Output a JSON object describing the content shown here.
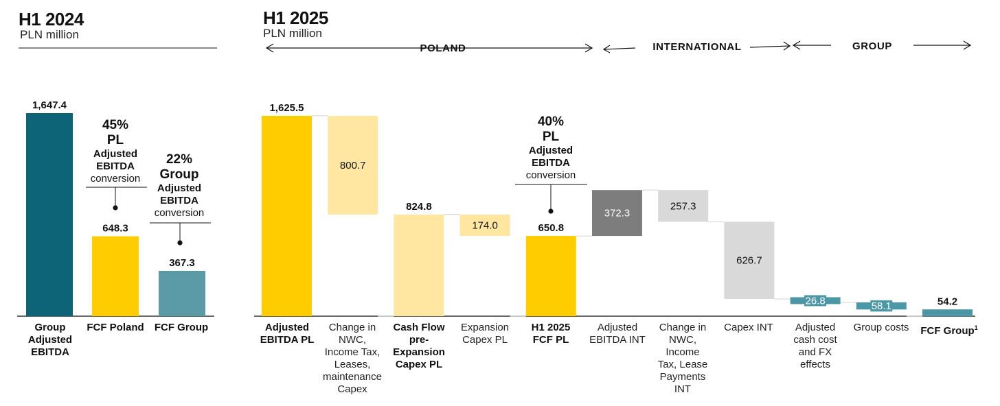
{
  "colors": {
    "teal_dark": "#0D6476",
    "teal_mid": "#5B9BA7",
    "teal_small": "#4C97A6",
    "yellow": "#FFCC00",
    "yellow_light": "#FFE7A2",
    "grey_dark": "#7D7D7D",
    "grey_light": "#D9D9D9"
  },
  "h1_2024": {
    "title": "H1 2024",
    "unit": "PLN million"
  },
  "h1_2025": {
    "title": "H1 2025",
    "unit": "PLN million"
  },
  "segments": {
    "poland": "POLAND",
    "international": "INTERNATIONAL",
    "group": "GROUP"
  },
  "annotations": {
    "pl_2024": {
      "pct": "45%",
      "line2": "PL",
      "line3": "Adjusted",
      "line4": "EBITDA",
      "line5": "conversion"
    },
    "group_2024": {
      "pct": "22%",
      "line2": "Group",
      "line3": "Adjusted",
      "line4": "EBITDA",
      "line5": "conversion"
    },
    "pl_2025": {
      "pct": "40%",
      "line2": "PL",
      "line3": "Adjusted",
      "line4": "EBITDA",
      "line5": "conversion"
    }
  },
  "categories_text": {
    "c2024_0": [
      "Group",
      "Adjusted",
      "EBITDA"
    ],
    "c2024_1": [
      "FCF Poland"
    ],
    "c2024_2": [
      "FCF Group"
    ],
    "c2025_0": [
      "Adjusted",
      "EBITDA PL"
    ],
    "c2025_1": [
      "Change in",
      "NWC,",
      "Income Tax,",
      "Leases,",
      "maintenance",
      "Capex"
    ],
    "c2025_2": [
      "Cash Flow",
      "pre-",
      "Expansion",
      "Capex PL"
    ],
    "c2025_3": [
      "Expansion",
      "Capex PL"
    ],
    "c2025_4": [
      "H1 2025",
      "FCF PL"
    ],
    "c2025_5": [
      "Adjusted",
      "EBITDA INT"
    ],
    "c2025_6": [
      "Change in",
      "NWC,",
      "Income",
      "Tax, Lease",
      "Payments",
      "INT"
    ],
    "c2025_7": [
      "Capex INT"
    ],
    "c2025_8": [
      "Adjusted",
      "cash cost",
      "and FX",
      "effects"
    ],
    "c2025_9": [
      "Group costs"
    ],
    "c2025_10": [
      "FCF Group",
      "1"
    ]
  },
  "chart_data": [
    {
      "type": "bar",
      "title": "H1 2024",
      "ylabel": "PLN million",
      "categories": [
        "Group Adjusted EBITDA",
        "FCF Poland",
        "FCF Group"
      ],
      "values": [
        1647.4,
        648.3,
        367.3
      ],
      "labels": [
        "1,647.4",
        "648.3",
        "367.3"
      ],
      "colors": [
        "teal_dark",
        "yellow",
        "teal_mid"
      ],
      "ylim": [
        0,
        1800
      ]
    },
    {
      "type": "bar",
      "subtype": "waterfall",
      "title": "H1 2025",
      "ylabel": "PLN million",
      "categories": [
        "Adjusted EBITDA PL",
        "Change in NWC, Income Tax, Leases, maintenance Capex",
        "Cash Flow pre-Expansion Capex PL",
        "Expansion Capex PL",
        "H1 2025 FCF PL",
        "Adjusted EBITDA INT",
        "Change in NWC, Income Tax, Lease Payments INT",
        "Capex INT",
        "Adjusted cash cost and FX effects",
        "Group costs",
        "FCF Group"
      ],
      "steps": [
        {
          "kind": "total",
          "value": 1625.5,
          "label": "1,625.5",
          "color": "yellow",
          "bold": true
        },
        {
          "kind": "delta",
          "value": -800.7,
          "label": "800.7",
          "color": "yellow_light"
        },
        {
          "kind": "total",
          "value": 824.8,
          "label": "824.8",
          "color": "yellow_light",
          "bold": true
        },
        {
          "kind": "delta",
          "value": -174.0,
          "label": "174.0",
          "color": "yellow_light"
        },
        {
          "kind": "total",
          "value": 650.8,
          "label": "650.8",
          "color": "yellow",
          "bold": true
        },
        {
          "kind": "delta",
          "value": 372.3,
          "label": "372.3",
          "color": "grey_dark"
        },
        {
          "kind": "delta",
          "value": -257.3,
          "label": "257.3",
          "color": "grey_light"
        },
        {
          "kind": "delta",
          "value": -626.7,
          "label": "626.7",
          "color": "grey_light"
        },
        {
          "kind": "delta",
          "value": -26.8,
          "label": "26.8",
          "color": "teal_small"
        },
        {
          "kind": "delta",
          "value": -58.1,
          "label": "58.1",
          "color": "teal_small"
        },
        {
          "kind": "total",
          "value": 54.2,
          "label": "54.2",
          "color": "teal_small",
          "bold": true
        }
      ],
      "segments": [
        "POLAND",
        "INTERNATIONAL",
        "GROUP"
      ],
      "ylim": [
        0,
        1800
      ]
    }
  ]
}
